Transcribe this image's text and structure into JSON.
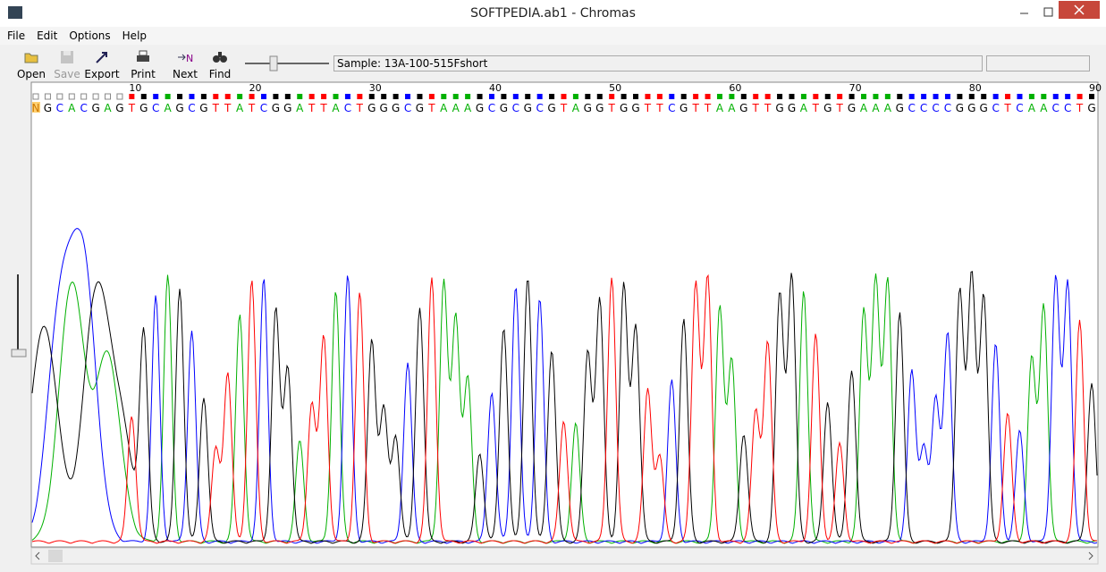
{
  "window": {
    "title": "SOFTPEDIA.ab1 - Chromas"
  },
  "menu": [
    "File",
    "Edit",
    "Options",
    "Help"
  ],
  "toolbar": [
    "Open",
    "Save",
    "Export",
    "Print",
    "Next",
    "Find"
  ],
  "sample": "Sample: 13A-100-515Fshort",
  "sequence": {
    "bases": "NGCACGAGTGCAGCGTTATCGGATTACTGGGCGTAAAGCGCGCGTAGGTGGTTCGTTAAGTTGGATGTGAAAGCCCCGGGCTCAACCTG",
    "positions": [
      10,
      20,
      30,
      40,
      50,
      60,
      70,
      80,
      90
    ]
  }
}
